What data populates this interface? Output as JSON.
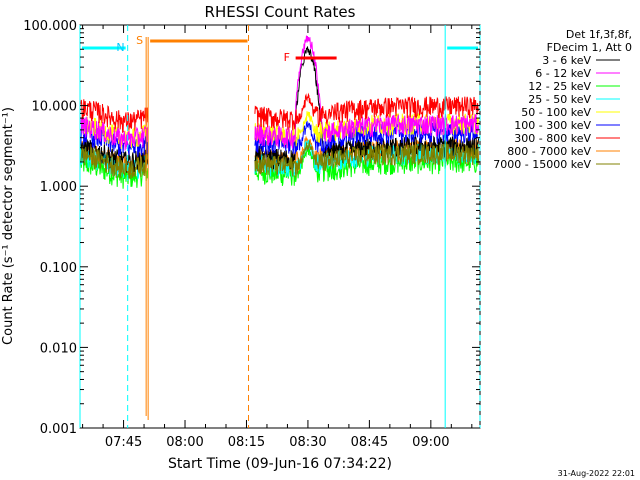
{
  "chart_data": {
    "type": "line",
    "title": "RHESSI Count Rates",
    "xlabel": "Start Time (09-Jun-16 07:34:22)",
    "ylabel": "Count Rate (s⁻¹ detector segment⁻¹)",
    "yscale": "log",
    "ylim": [
      0.001,
      100.0
    ],
    "xlim": [
      "07:34:22",
      "09:12:00"
    ],
    "y_ticks": [
      "100.000",
      "10.000",
      "1.000",
      "0.100",
      "0.010",
      "0.001"
    ],
    "x_ticks": [
      "07:45",
      "08:00",
      "08:15",
      "08:30",
      "08:45",
      "09:00"
    ],
    "legend_header": [
      "Det 1f,3f,8f,",
      "FDecim 1, Att 0"
    ],
    "timestamp": "31-Aug-2022 22:01",
    "series": [
      {
        "name": "3 - 6 keV",
        "color": "#000000",
        "base": 3.2,
        "flare_peak": 50
      },
      {
        "name": "6 - 12 keV",
        "color": "#ff00ff",
        "base": 6.0,
        "flare_peak": 70
      },
      {
        "name": "12 - 25 keV",
        "color": "#00ff00",
        "base": 2.0,
        "flare_peak": 3.0
      },
      {
        "name": "25 - 50 keV",
        "color": "#00ffff",
        "base": 2.6,
        "flare_peak": 3.5
      },
      {
        "name": "50 - 100 keV",
        "color": "#ffff00",
        "base": 6.2,
        "flare_peak": 8
      },
      {
        "name": "100 - 300 keV",
        "color": "#0000ff",
        "base": 4.8,
        "flare_peak": 6
      },
      {
        "name": "300 - 800 keV",
        "color": "#ff0000",
        "base": 10.0,
        "flare_peak": 13
      },
      {
        "name": "800 - 7000 keV",
        "color": "#ff8000",
        "base": 3.0,
        "flare_peak": 4
      },
      {
        "name": "7000 - 15000 keV",
        "color": "#808000",
        "base": 2.6,
        "flare_peak": 3.5
      }
    ],
    "annotations": {
      "night_label": "N",
      "saa_label": "S",
      "flare_label": "F",
      "night_intervals": [
        [
          "07:34:22",
          "07:46:00"
        ],
        [
          "09:03:30",
          "09:12:00"
        ]
      ],
      "saa_interval": [
        "07:51:00",
        "08:15:30"
      ],
      "flare_interval": [
        "08:27:00",
        "08:37:00"
      ],
      "gaps": [
        [
          "07:51:00",
          "08:17:00"
        ]
      ]
    }
  }
}
